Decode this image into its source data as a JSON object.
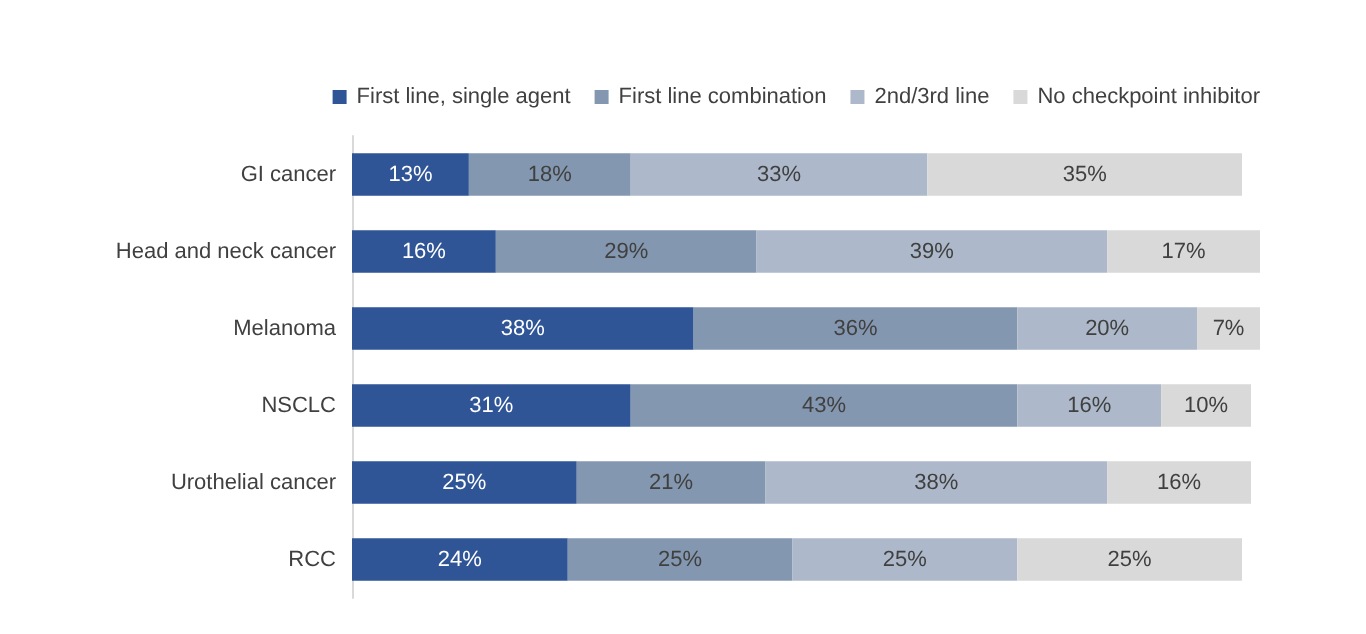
{
  "chart_data": {
    "type": "bar",
    "orientation": "horizontal",
    "stacked": true,
    "legend": "top right",
    "categories": [
      "GI cancer",
      "Head and neck cancer",
      "Melanoma",
      "NSCLC",
      "Urothelial cancer",
      "RCC"
    ],
    "series": [
      {
        "name": "First line, single agent",
        "color": "#2f5597",
        "values": [
          13,
          16,
          38,
          31,
          25,
          24
        ],
        "value_labels": [
          "13%",
          "16%",
          "38%",
          "31%",
          "25%",
          "24%"
        ]
      },
      {
        "name": "First line combination",
        "color": "#8497b0",
        "values": [
          18,
          29,
          36,
          43,
          21,
          25
        ],
        "value_labels": [
          "18%",
          "29%",
          "36%",
          "43%",
          "21%",
          "25%"
        ]
      },
      {
        "name": "2nd/3rd line",
        "color": "#adb9ca",
        "values": [
          33,
          39,
          20,
          16,
          38,
          25
        ],
        "value_labels": [
          "33%",
          "39%",
          "20%",
          "16%",
          "38%",
          "25%"
        ]
      },
      {
        "name": "No checkpoint inhibitor",
        "color": "#d9d9d9",
        "values": [
          35,
          17,
          7,
          10,
          16,
          25
        ],
        "value_labels": [
          "35%",
          "17%",
          "7%",
          "10%",
          "16%",
          "25%"
        ]
      }
    ]
  }
}
